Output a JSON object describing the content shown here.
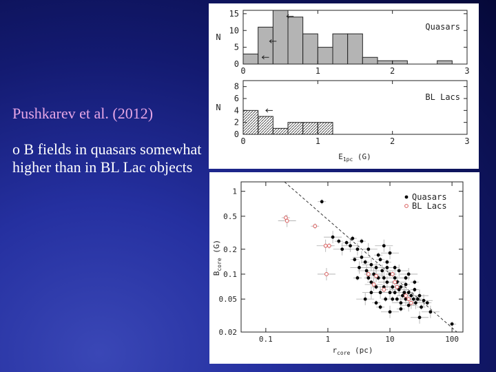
{
  "slide": {
    "subtitle": "Pushkarev et al. (2012)",
    "bullet": "o B fields in quasars somewhat higher than in BL Lac objects"
  },
  "colors": {
    "background": "#141c78",
    "subtitle": "#e7a7e6",
    "text": "#ffffff",
    "quasar_bar": "#b4b4b4",
    "bllac_marker": "#d95c5c"
  },
  "chart_data": [
    {
      "type": "bar",
      "title": "Quasars",
      "ylabel": "N",
      "xlim": [
        0,
        3
      ],
      "ylim": [
        0,
        16
      ],
      "yticks": [
        0,
        5,
        10,
        15
      ],
      "xticks": [
        0,
        1,
        2,
        3
      ],
      "bin_edges": [
        0,
        0.2,
        0.4,
        0.6,
        0.8,
        1.0,
        1.2,
        1.4,
        1.6,
        1.8,
        2.0,
        2.2,
        2.4,
        2.6,
        2.8
      ],
      "values": [
        3,
        11,
        16,
        14,
        9,
        5,
        9,
        9,
        2,
        1,
        1,
        0,
        0,
        1
      ],
      "upper_limits": [
        {
          "x": 0.3,
          "y": 2
        },
        {
          "x": 0.4,
          "y": 6.8
        },
        {
          "x": 0.63,
          "y": 14.2
        }
      ]
    },
    {
      "type": "bar",
      "title": "BL Lacs",
      "ylabel": "N",
      "xlabel": "E",
      "xlabel_sub": "1pc",
      "xlabel_unit": "(G)",
      "xlim": [
        0,
        3
      ],
      "ylim": [
        0,
        9
      ],
      "yticks": [
        0,
        2,
        4,
        6,
        8
      ],
      "xticks": [
        0,
        1,
        2,
        3
      ],
      "bin_edges": [
        0,
        0.2,
        0.4,
        0.6,
        0.8,
        1.0,
        1.2
      ],
      "values": [
        4,
        3,
        1,
        2,
        2,
        2
      ],
      "upper_limits": [
        {
          "x": 0.35,
          "y": 4
        }
      ]
    },
    {
      "type": "scatter",
      "xscale": "log",
      "yscale": "log",
      "xlim": [
        0.04,
        150
      ],
      "ylim": [
        0.02,
        1.3
      ],
      "xlabel": "r",
      "xlabel_sub": "core",
      "xlabel_unit": "(pc)",
      "ylabel": "B",
      "ylabel_sub": "core",
      "ylabel_unit": "(G)",
      "xticks": [
        0.1,
        1,
        10,
        100
      ],
      "xtick_labels": [
        "0.1",
        "1",
        "10",
        "100"
      ],
      "yticks": [
        0.02,
        0.05,
        0.1,
        0.2,
        0.5,
        1
      ],
      "ytick_labels": [
        "0.02",
        "0.05",
        "0.1",
        "0.2",
        "0.5",
        "1"
      ],
      "legend": {
        "position": "top-right"
      },
      "trend_line": [
        [
          0.2,
          1.3
        ],
        [
          120,
          0.02
        ]
      ],
      "series": [
        {
          "name": "Quasars",
          "marker": "filled-circle",
          "points": [
            [
              0.8,
              0.75
            ],
            [
              1.2,
              0.28
            ],
            [
              1.5,
              0.25
            ],
            [
              1.7,
              0.2
            ],
            [
              2.0,
              0.24
            ],
            [
              2.3,
              0.22
            ],
            [
              2.5,
              0.27
            ],
            [
              3.0,
              0.2
            ],
            [
              3.5,
              0.25
            ],
            [
              3.5,
              0.16
            ],
            [
              4.0,
              0.14
            ],
            [
              4.2,
              0.11
            ],
            [
              4.5,
              0.09
            ],
            [
              5.0,
              0.13
            ],
            [
              5.0,
              0.08
            ],
            [
              5.5,
              0.1
            ],
            [
              6.0,
              0.07
            ],
            [
              6.0,
              0.12
            ],
            [
              6.5,
              0.09
            ],
            [
              7.0,
              0.06
            ],
            [
              7.0,
              0.15
            ],
            [
              7.5,
              0.11
            ],
            [
              8.0,
              0.07
            ],
            [
              8.0,
              0.09
            ],
            [
              8.5,
              0.05
            ],
            [
              9.0,
              0.08
            ],
            [
              9.0,
              0.12
            ],
            [
              10,
              0.06
            ],
            [
              10,
              0.1
            ],
            [
              11,
              0.07
            ],
            [
              11,
              0.05
            ],
            [
              12,
              0.09
            ],
            [
              12,
              0.06
            ],
            [
              13,
              0.08
            ],
            [
              13,
              0.05
            ],
            [
              14,
              0.065
            ],
            [
              15,
              0.07
            ],
            [
              15,
              0.045
            ],
            [
              16,
              0.055
            ],
            [
              17,
              0.06
            ],
            [
              18,
              0.075
            ],
            [
              18,
              0.05
            ],
            [
              20,
              0.06
            ],
            [
              20,
              0.042
            ],
            [
              22,
              0.055
            ],
            [
              24,
              0.05
            ],
            [
              25,
              0.065
            ],
            [
              26,
              0.045
            ],
            [
              28,
              0.05
            ],
            [
              30,
              0.055
            ],
            [
              32,
              0.04
            ],
            [
              35,
              0.048
            ],
            [
              40,
              0.045
            ],
            [
              45,
              0.035
            ],
            [
              6.0,
              0.045
            ],
            [
              5.0,
              0.06
            ],
            [
              3.0,
              0.09
            ],
            [
              3.2,
              0.12
            ],
            [
              2.7,
              0.15
            ],
            [
              4.5,
              0.2
            ],
            [
              6.5,
              0.17
            ],
            [
              8.0,
              0.22
            ],
            [
              9.0,
              0.14
            ],
            [
              10,
              0.18
            ],
            [
              12,
              0.12
            ],
            [
              14,
              0.11
            ],
            [
              18,
              0.09
            ],
            [
              20,
              0.1
            ],
            [
              25,
              0.08
            ],
            [
              4.0,
              0.05
            ],
            [
              7.0,
              0.04
            ],
            [
              10,
              0.035
            ],
            [
              15,
              0.038
            ],
            [
              30,
              0.03
            ],
            [
              100,
              0.025
            ]
          ]
        },
        {
          "name": "BL Lacs",
          "marker": "open-circle",
          "points": [
            [
              0.21,
              0.48
            ],
            [
              0.22,
              0.44
            ],
            [
              0.62,
              0.38
            ],
            [
              0.92,
              0.22
            ],
            [
              1.05,
              0.22
            ],
            [
              0.95,
              0.1
            ],
            [
              4.5,
              0.1
            ],
            [
              6.0,
              0.095
            ],
            [
              11,
              0.1
            ],
            [
              12,
              0.08
            ],
            [
              13,
              0.07
            ],
            [
              18,
              0.055
            ],
            [
              20,
              0.05
            ],
            [
              22,
              0.045
            ],
            [
              8.0,
              0.065
            ],
            [
              5.5,
              0.075
            ]
          ]
        }
      ]
    }
  ]
}
